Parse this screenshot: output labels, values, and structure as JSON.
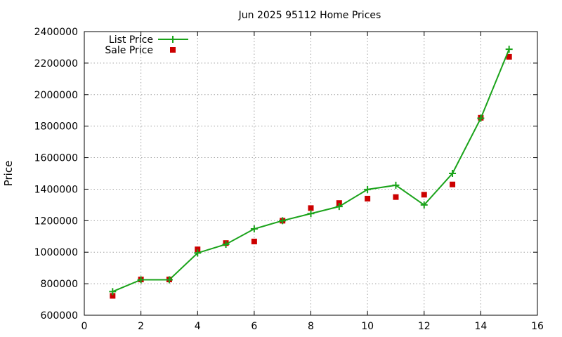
{
  "chart_data": {
    "type": "line",
    "title": "Jun 2025 95112 Home Prices",
    "xlabel": "",
    "ylabel": "Price",
    "xlim": [
      0,
      16
    ],
    "ylim": [
      600000,
      2400000
    ],
    "xticks": [
      0,
      2,
      4,
      6,
      8,
      10,
      12,
      14,
      16
    ],
    "yticks": [
      600000,
      800000,
      1000000,
      1200000,
      1400000,
      1600000,
      1800000,
      2000000,
      2200000,
      2400000
    ],
    "grid": true,
    "legend": "top-left",
    "series": [
      {
        "name": "List Price",
        "style": "line+cross",
        "color": "#1aa31a",
        "x": [
          1,
          2,
          3,
          4,
          5,
          6,
          7,
          8,
          9,
          10,
          11,
          12,
          13,
          14,
          15
        ],
        "y": [
          750000,
          825000,
          825000,
          995000,
          1050000,
          1148000,
          1200000,
          1245000,
          1290000,
          1398000,
          1425000,
          1300000,
          1500000,
          1850000,
          2288000
        ]
      },
      {
        "name": "Sale Price",
        "style": "square",
        "color": "#cc0000",
        "x": [
          1,
          2,
          3,
          4,
          5,
          6,
          7,
          8,
          9,
          10,
          11,
          12,
          13,
          14,
          15
        ],
        "y": [
          723000,
          827000,
          827000,
          1018000,
          1058000,
          1068000,
          1200000,
          1280000,
          1312000,
          1340000,
          1350000,
          1365000,
          1430000,
          1853000,
          2240000
        ]
      }
    ]
  }
}
